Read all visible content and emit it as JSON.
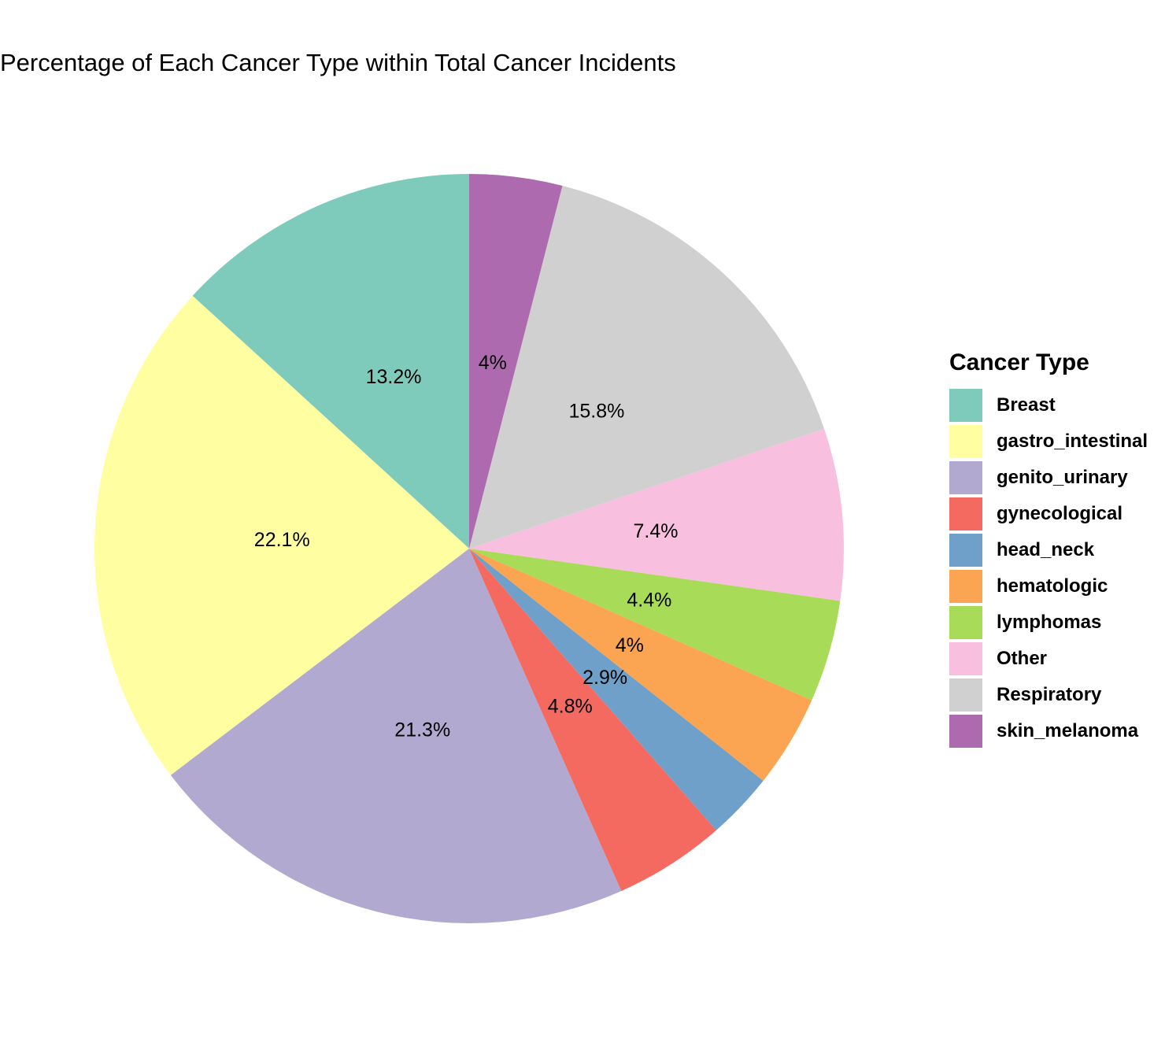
{
  "chart_data": {
    "type": "pie",
    "title": "Percentage of Each Cancer Type within Total Cancer Incidents",
    "legend_title": "Cancer Type",
    "legend_position": "right",
    "slices": [
      {
        "name": "Breast",
        "value": 13.2,
        "label": "13.2%",
        "color": "#7FCBBB"
      },
      {
        "name": "gastro_intestinal",
        "value": 22.1,
        "label": "22.1%",
        "color": "#FFFFA2"
      },
      {
        "name": "genito_urinary",
        "value": 21.3,
        "label": "21.3%",
        "color": "#B1A9CF"
      },
      {
        "name": "gynecological",
        "value": 4.8,
        "label": "4.8%",
        "color": "#F56A60"
      },
      {
        "name": "head_neck",
        "value": 2.9,
        "label": "2.9%",
        "color": "#6FA0C9"
      },
      {
        "name": "hematologic",
        "value": 4.0,
        "label": "4%",
        "color": "#FBA451"
      },
      {
        "name": "lymphomas",
        "value": 4.4,
        "label": "4.4%",
        "color": "#A8DB58"
      },
      {
        "name": "Other",
        "value": 7.4,
        "label": "7.4%",
        "color": "#F8C0DE"
      },
      {
        "name": "Respiratory",
        "value": 15.8,
        "label": "15.8%",
        "color": "#D0D0D0"
      },
      {
        "name": "skin_melanoma",
        "value": 4.0,
        "label": "4%",
        "color": "#AE6AAF"
      }
    ]
  }
}
